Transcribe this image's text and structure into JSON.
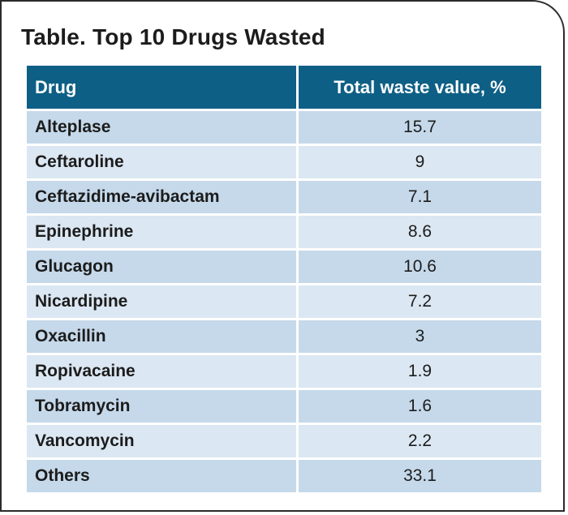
{
  "title": "Table. Top 10 Drugs Wasted",
  "table": {
    "headers": {
      "drug": "Drug",
      "value": "Total waste value, %"
    },
    "rows": [
      {
        "drug": "Alteplase",
        "value": "15.7"
      },
      {
        "drug": "Ceftaroline",
        "value": "9"
      },
      {
        "drug": "Ceftazidime-avibactam",
        "value": "7.1"
      },
      {
        "drug": "Epinephrine",
        "value": "8.6"
      },
      {
        "drug": "Glucagon",
        "value": "10.6"
      },
      {
        "drug": "Nicardipine",
        "value": "7.2"
      },
      {
        "drug": "Oxacillin",
        "value": "3"
      },
      {
        "drug": "Ropivacaine",
        "value": "1.9"
      },
      {
        "drug": "Tobramycin",
        "value": "1.6"
      },
      {
        "drug": "Vancomycin",
        "value": "2.2"
      },
      {
        "drug": "Others",
        "value": "33.1"
      }
    ]
  },
  "colors": {
    "header_bg": "#0e5f85",
    "row_dark": "#c5d9ea",
    "row_light": "#dbe7f2",
    "border": "#2b2b2b"
  }
}
